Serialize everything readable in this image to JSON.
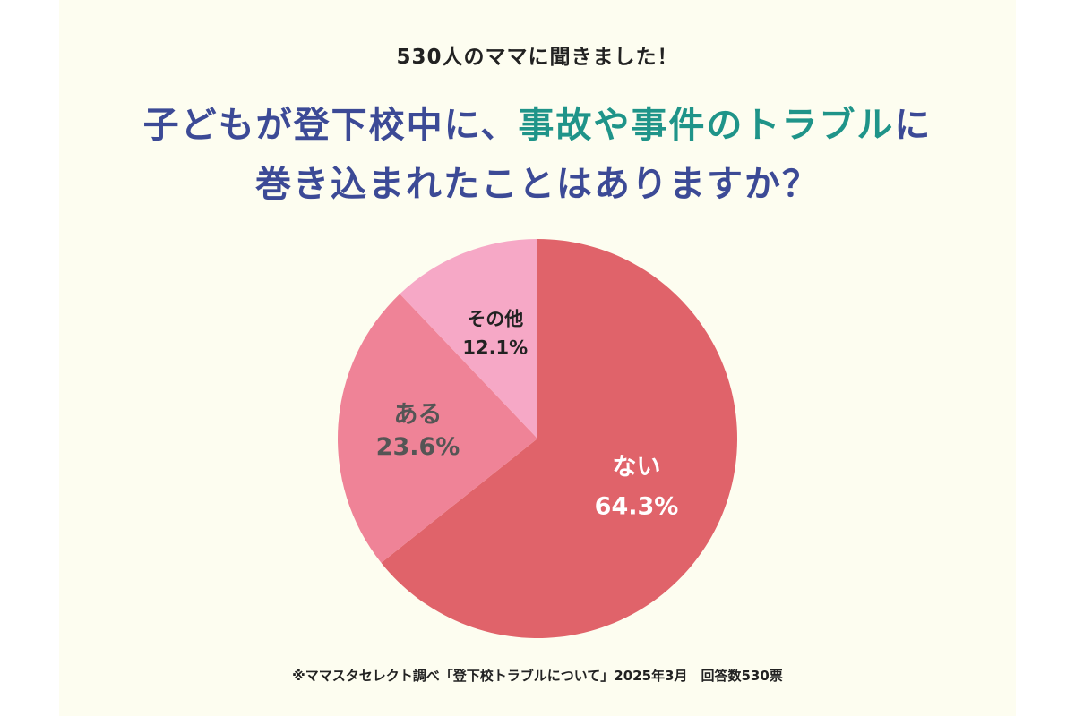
{
  "header": {
    "subtitle": "530人のママに聞きました！",
    "title_line1_part1": "子どもが登下校中に、",
    "title_line1_highlight": "事故や事件のトラブル",
    "title_line1_part2": "に",
    "title_line2": "巻き込まれたことはありますか？"
  },
  "footnote": "※ママスタセレクト調べ「登下校トラブルについて」2025年3月　回答数530票",
  "colors": {
    "background": "#fdfdf0",
    "title": "#3c4a96",
    "highlight": "#1f9489"
  },
  "chart_data": {
    "type": "pie",
    "slices": [
      {
        "label": "ない",
        "value": 64.3,
        "value_label": "64.3%",
        "color": "#e0636a",
        "text_color": "#ffffff"
      },
      {
        "label": "ある",
        "value": 23.6,
        "value_label": "23.6%",
        "color": "#ef8397",
        "text_color": "#555555"
      },
      {
        "label": "その他",
        "value": 12.1,
        "value_label": "12.1%",
        "color": "#f6a8c6",
        "text_color": "#222222"
      }
    ]
  }
}
